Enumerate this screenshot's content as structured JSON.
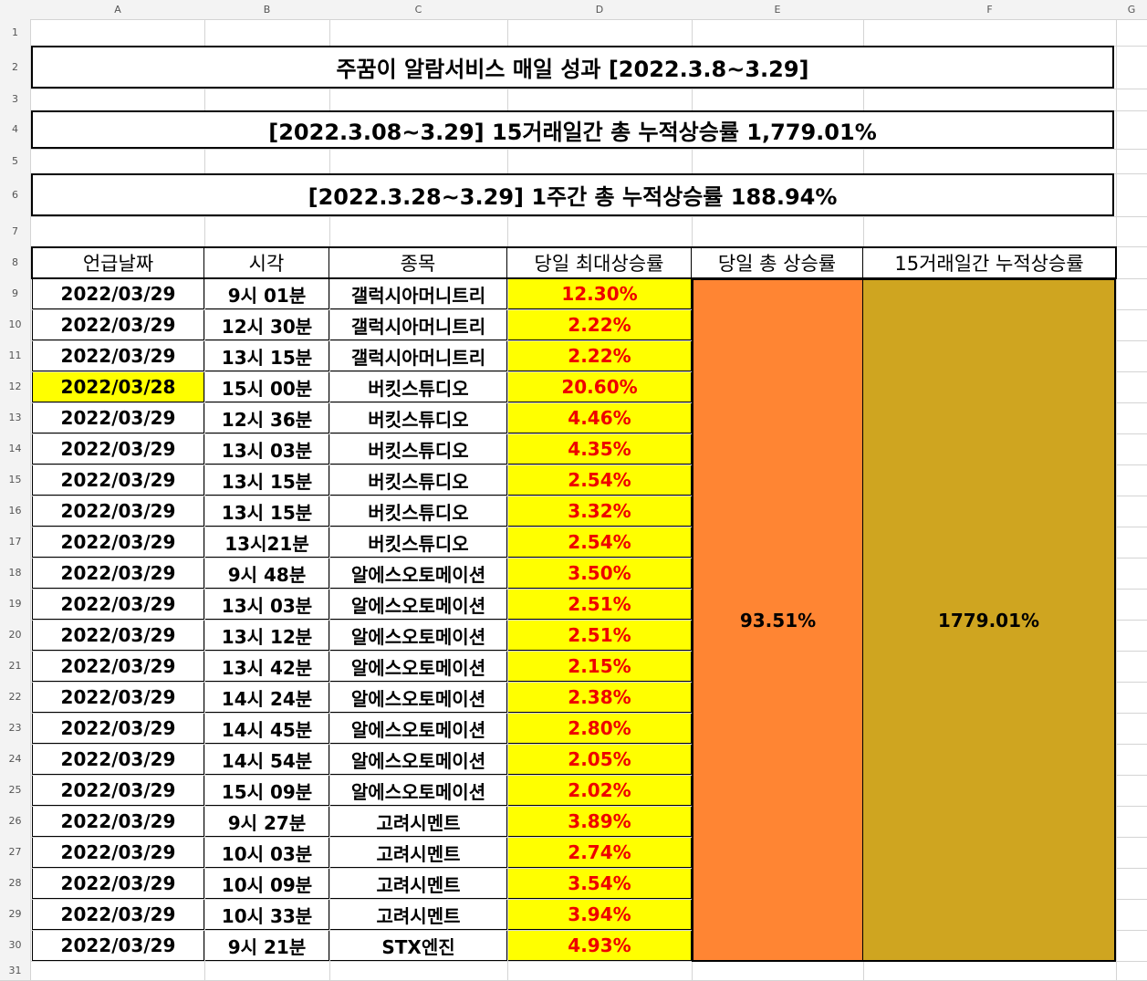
{
  "sheet": {
    "column_letters": [
      "A",
      "B",
      "C",
      "D",
      "E",
      "F",
      "G"
    ],
    "row_numbers": [
      "1",
      "2",
      "3",
      "4",
      "5",
      "6",
      "7",
      "8",
      "9",
      "10",
      "11",
      "12",
      "13",
      "14",
      "15",
      "16",
      "17",
      "18",
      "19",
      "20",
      "21",
      "22",
      "23",
      "24",
      "25",
      "26",
      "27",
      "28",
      "29",
      "30",
      "31"
    ]
  },
  "banners": {
    "title": "주꿈이 알람서비스 매일 성과 [2022.3.8~3.29]",
    "cumulative_15days": "[2022.3.08~3.29] 15거래일간 총 누적상승률 1,779.01%",
    "cumulative_week": "[2022.3.28~3.29] 1주간 총 누적상승률 188.94%"
  },
  "table": {
    "headers": [
      "언급날짜",
      "시각",
      "종목",
      "당일 최대상승률",
      "당일 총 상승률",
      "15거래일간 누적상승률"
    ],
    "rows": [
      {
        "date": "2022/03/29",
        "time": "9시 01분",
        "stock": "갤럭시아머니트리",
        "rate": "12.30%"
      },
      {
        "date": "2022/03/29",
        "time": "12시 30분",
        "stock": "갤럭시아머니트리",
        "rate": "2.22%"
      },
      {
        "date": "2022/03/29",
        "time": "13시 15분",
        "stock": "갤럭시아머니트리",
        "rate": "2.22%"
      },
      {
        "date": "2022/03/28",
        "time": "15시 00분",
        "stock": "버킷스튜디오",
        "rate": "20.60%",
        "highlight": true
      },
      {
        "date": "2022/03/29",
        "time": "12시 36분",
        "stock": "버킷스튜디오",
        "rate": "4.46%"
      },
      {
        "date": "2022/03/29",
        "time": "13시 03분",
        "stock": "버킷스튜디오",
        "rate": "4.35%"
      },
      {
        "date": "2022/03/29",
        "time": "13시 15분",
        "stock": "버킷스튜디오",
        "rate": "2.54%"
      },
      {
        "date": "2022/03/29",
        "time": "13시 15분",
        "stock": "버킷스튜디오",
        "rate": "3.32%"
      },
      {
        "date": "2022/03/29",
        "time": "13시21분",
        "stock": "버킷스튜디오",
        "rate": "2.54%"
      },
      {
        "date": "2022/03/29",
        "time": "9시 48분",
        "stock": "알에스오토메이션",
        "rate": "3.50%"
      },
      {
        "date": "2022/03/29",
        "time": "13시 03분",
        "stock": "알에스오토메이션",
        "rate": "2.51%"
      },
      {
        "date": "2022/03/29",
        "time": "13시 12분",
        "stock": "알에스오토메이션",
        "rate": "2.51%"
      },
      {
        "date": "2022/03/29",
        "time": "13시 42분",
        "stock": "알에스오토메이션",
        "rate": "2.15%"
      },
      {
        "date": "2022/03/29",
        "time": "14시 24분",
        "stock": "알에스오토메이션",
        "rate": "2.38%"
      },
      {
        "date": "2022/03/29",
        "time": "14시 45분",
        "stock": "알에스오토메이션",
        "rate": "2.80%"
      },
      {
        "date": "2022/03/29",
        "time": "14시 54분",
        "stock": "알에스오토메이션",
        "rate": "2.05%"
      },
      {
        "date": "2022/03/29",
        "time": "15시 09분",
        "stock": "알에스오토메이션",
        "rate": "2.02%"
      },
      {
        "date": "2022/03/29",
        "time": "9시 27분",
        "stock": "고려시멘트",
        "rate": "3.89%"
      },
      {
        "date": "2022/03/29",
        "time": "10시 03분",
        "stock": "고려시멘트",
        "rate": "2.74%"
      },
      {
        "date": "2022/03/29",
        "time": "10시 09분",
        "stock": "고려시멘트",
        "rate": "3.54%"
      },
      {
        "date": "2022/03/29",
        "time": "10시 33분",
        "stock": "고려시멘트",
        "rate": "3.94%"
      },
      {
        "date": "2022/03/29",
        "time": "9시 21분",
        "stock": "STX엔진",
        "rate": "4.93%"
      }
    ],
    "daily_total": "93.51%",
    "cumulative_total": "1779.01%"
  },
  "colors": {
    "rate_text": "#ee0000",
    "rate_fill": "#ffff00",
    "date_highlight": "#ffff00",
    "daily_total_fill": "#ff8533",
    "cumulative_total_fill": "#cfa520"
  }
}
